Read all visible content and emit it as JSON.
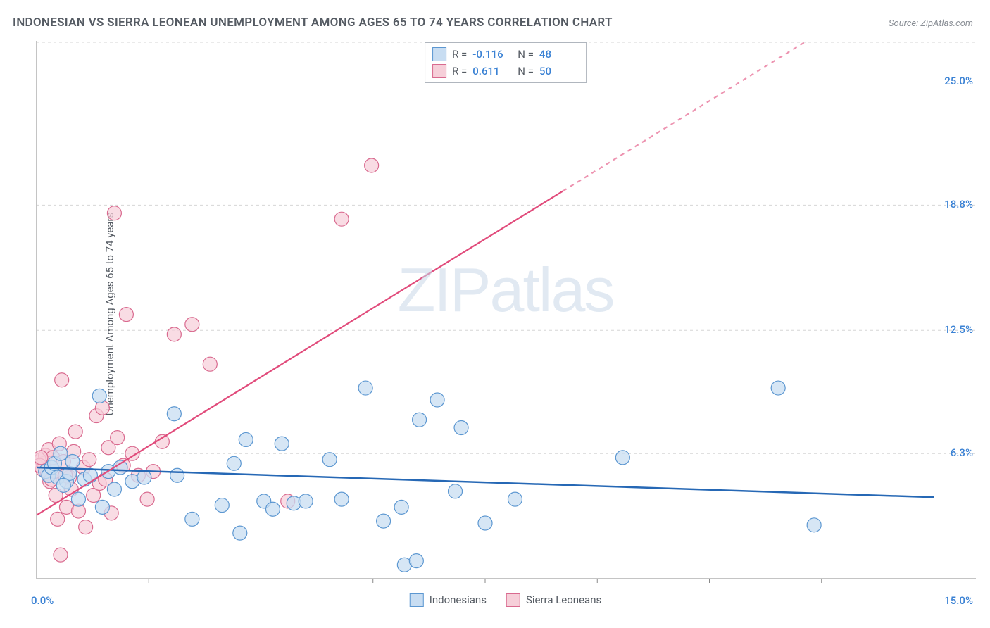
{
  "title": "INDONESIAN VS SIERRA LEONEAN UNEMPLOYMENT AMONG AGES 65 TO 74 YEARS CORRELATION CHART",
  "source": "Source: ZipAtlas.com",
  "ylabel": "Unemployment Among Ages 65 to 74 years",
  "watermark_a": "ZIP",
  "watermark_b": "atlas",
  "chart": {
    "type": "scatter",
    "xlim": [
      0,
      15
    ],
    "ylim": [
      0,
      27
    ],
    "x_range_min_label": "0.0%",
    "x_range_max_label": "15.0%",
    "x_range_color": "#3b82d4",
    "y_ticks": [
      6.3,
      12.5,
      18.8,
      25.0
    ],
    "y_tick_labels": [
      "6.3%",
      "12.5%",
      "18.8%",
      "25.0%"
    ],
    "y_tick_color": "#3b82d4",
    "x_minor_ticks": [
      1.875,
      3.75,
      5.625,
      7.5,
      9.375,
      11.25,
      13.125
    ],
    "grid_color": "#d6d6d6",
    "background_color": "#ffffff",
    "marker_radius": 10,
    "marker_stroke_width": 1.2,
    "series": [
      {
        "name": "Indonesians",
        "fill": "#c8ddf2",
        "stroke": "#5c97d1",
        "fill_opacity": 0.75,
        "R": "-0.116",
        "N": "48",
        "trend": {
          "y_at_x0": 5.6,
          "y_at_xmax": 4.1,
          "color": "#2668b5",
          "width": 2.5,
          "dash_after_x": null
        },
        "points": [
          [
            0.15,
            5.4
          ],
          [
            0.2,
            5.2
          ],
          [
            0.25,
            5.6
          ],
          [
            0.3,
            5.8
          ],
          [
            0.35,
            5.1
          ],
          [
            0.5,
            4.9
          ],
          [
            0.55,
            5.3
          ],
          [
            0.6,
            5.9
          ],
          [
            0.7,
            4.0
          ],
          [
            0.8,
            5.0
          ],
          [
            0.9,
            5.2
          ],
          [
            1.05,
            9.2
          ],
          [
            1.1,
            3.6
          ],
          [
            1.2,
            5.4
          ],
          [
            1.3,
            4.5
          ],
          [
            1.4,
            5.6
          ],
          [
            1.6,
            4.9
          ],
          [
            1.8,
            5.1
          ],
          [
            2.3,
            8.3
          ],
          [
            2.35,
            5.2
          ],
          [
            2.6,
            3.0
          ],
          [
            3.1,
            3.7
          ],
          [
            3.3,
            5.8
          ],
          [
            3.4,
            2.3
          ],
          [
            3.5,
            7.0
          ],
          [
            3.8,
            3.9
          ],
          [
            3.95,
            3.5
          ],
          [
            4.1,
            6.8
          ],
          [
            4.3,
            3.8
          ],
          [
            4.5,
            3.9
          ],
          [
            4.9,
            6.0
          ],
          [
            5.1,
            4.0
          ],
          [
            5.5,
            9.6
          ],
          [
            5.8,
            2.9
          ],
          [
            6.1,
            3.6
          ],
          [
            6.15,
            0.7
          ],
          [
            6.35,
            0.9
          ],
          [
            6.4,
            8.0
          ],
          [
            6.7,
            9.0
          ],
          [
            7.0,
            4.4
          ],
          [
            7.1,
            7.6
          ],
          [
            7.5,
            2.8
          ],
          [
            8.0,
            4.0
          ],
          [
            9.8,
            6.1
          ],
          [
            12.4,
            9.6
          ],
          [
            13.0,
            2.7
          ],
          [
            0.4,
            6.3
          ],
          [
            0.45,
            4.7
          ]
        ]
      },
      {
        "name": "Sierra Leoneans",
        "fill": "#f6cfd9",
        "stroke": "#d96a8f",
        "fill_opacity": 0.72,
        "R": "0.611",
        "N": "50",
        "trend": {
          "y_at_x0": 3.2,
          "y_at_xmax": 31.0,
          "color": "#e14b7b",
          "width": 2.2,
          "dash_after_x": 8.8
        },
        "points": [
          [
            0.08,
            6.0
          ],
          [
            0.1,
            5.5
          ],
          [
            0.12,
            5.8
          ],
          [
            0.15,
            6.2
          ],
          [
            0.18,
            5.3
          ],
          [
            0.2,
            6.5
          ],
          [
            0.22,
            4.9
          ],
          [
            0.25,
            5.0
          ],
          [
            0.27,
            6.1
          ],
          [
            0.3,
            5.4
          ],
          [
            0.32,
            4.2
          ],
          [
            0.35,
            3.0
          ],
          [
            0.38,
            6.8
          ],
          [
            0.4,
            1.2
          ],
          [
            0.42,
            10.0
          ],
          [
            0.45,
            5.9
          ],
          [
            0.5,
            3.6
          ],
          [
            0.55,
            5.1
          ],
          [
            0.58,
            4.5
          ],
          [
            0.62,
            6.4
          ],
          [
            0.65,
            7.4
          ],
          [
            0.7,
            3.4
          ],
          [
            0.78,
            5.6
          ],
          [
            0.82,
            2.6
          ],
          [
            0.88,
            6.0
          ],
          [
            0.95,
            4.2
          ],
          [
            1.0,
            8.2
          ],
          [
            1.05,
            4.8
          ],
          [
            1.1,
            8.6
          ],
          [
            1.15,
            5.0
          ],
          [
            1.2,
            6.6
          ],
          [
            1.25,
            3.3
          ],
          [
            1.3,
            18.4
          ],
          [
            1.35,
            7.1
          ],
          [
            1.45,
            5.7
          ],
          [
            1.5,
            13.3
          ],
          [
            1.6,
            6.3
          ],
          [
            1.7,
            5.2
          ],
          [
            1.85,
            4.0
          ],
          [
            1.95,
            5.4
          ],
          [
            2.1,
            6.9
          ],
          [
            2.3,
            12.3
          ],
          [
            2.6,
            12.8
          ],
          [
            2.9,
            10.8
          ],
          [
            4.2,
            3.9
          ],
          [
            5.1,
            18.1
          ],
          [
            5.6,
            20.8
          ],
          [
            0.05,
            5.7
          ],
          [
            0.07,
            6.1
          ],
          [
            0.48,
            5.2
          ]
        ]
      }
    ],
    "legend_bottom": [
      {
        "label": "Indonesians",
        "fill": "#c8ddf2",
        "stroke": "#5c97d1"
      },
      {
        "label": "Sierra Leoneans",
        "fill": "#f6cfd9",
        "stroke": "#d96a8f"
      }
    ]
  }
}
